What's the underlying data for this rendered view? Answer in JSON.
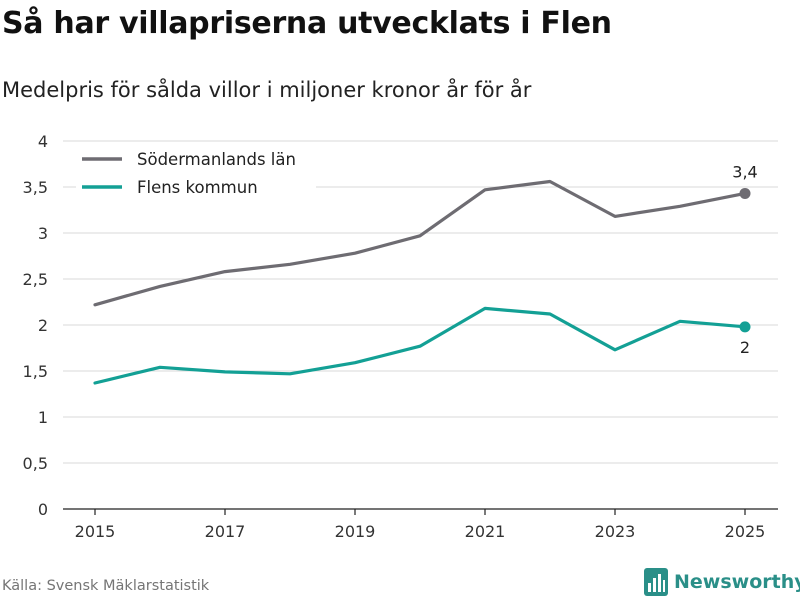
{
  "header": {
    "title": "Så har villapriserna utvecklats i Flen",
    "subtitle": "Medelpris för sålda villor i miljoner kronor år för år"
  },
  "footer": {
    "source": "Källa: Svensk Mäklarstatistik",
    "brand": "Newsworthy",
    "brand_icon": "bar-chart-icon"
  },
  "colors": {
    "sodermanland": "#6e6c72",
    "flen": "#13a095",
    "grid": "#d9d9d9",
    "axis": "#222222",
    "brand": "#2a8f88"
  },
  "chart_data": {
    "type": "line",
    "title": "Så har villapriserna utvecklats i Flen",
    "subtitle": "Medelpris för sålda villor i miljoner kronor år för år",
    "xlabel": "",
    "ylabel": "",
    "x": [
      2015,
      2016,
      2017,
      2018,
      2019,
      2020,
      2021,
      2022,
      2023,
      2024,
      2025
    ],
    "xticks": [
      2015,
      2017,
      2019,
      2021,
      2023,
      2025
    ],
    "xtick_labels": [
      "2015",
      "2017",
      "2019",
      "2021",
      "2023",
      "2025"
    ],
    "xlim": [
      2015,
      2025
    ],
    "ylim": [
      0,
      4
    ],
    "yticks": [
      0,
      0.5,
      1,
      1.5,
      2,
      2.5,
      3,
      3.5,
      4
    ],
    "ytick_labels": [
      "0",
      "0,5",
      "1",
      "1,5",
      "2",
      "2,5",
      "3",
      "3,5",
      "4"
    ],
    "grid": true,
    "legend_position": "top-left",
    "series": [
      {
        "name": "Södermanlands län",
        "values": [
          2.22,
          2.42,
          2.58,
          2.66,
          2.78,
          2.97,
          3.47,
          3.56,
          3.18,
          3.29,
          3.43
        ],
        "end_label": "3,4",
        "end_label_side": "above"
      },
      {
        "name": "Flens kommun",
        "values": [
          1.37,
          1.54,
          1.49,
          1.47,
          1.59,
          1.77,
          2.18,
          2.12,
          1.73,
          2.04,
          1.98
        ],
        "end_label": "2",
        "end_label_side": "below"
      }
    ]
  }
}
